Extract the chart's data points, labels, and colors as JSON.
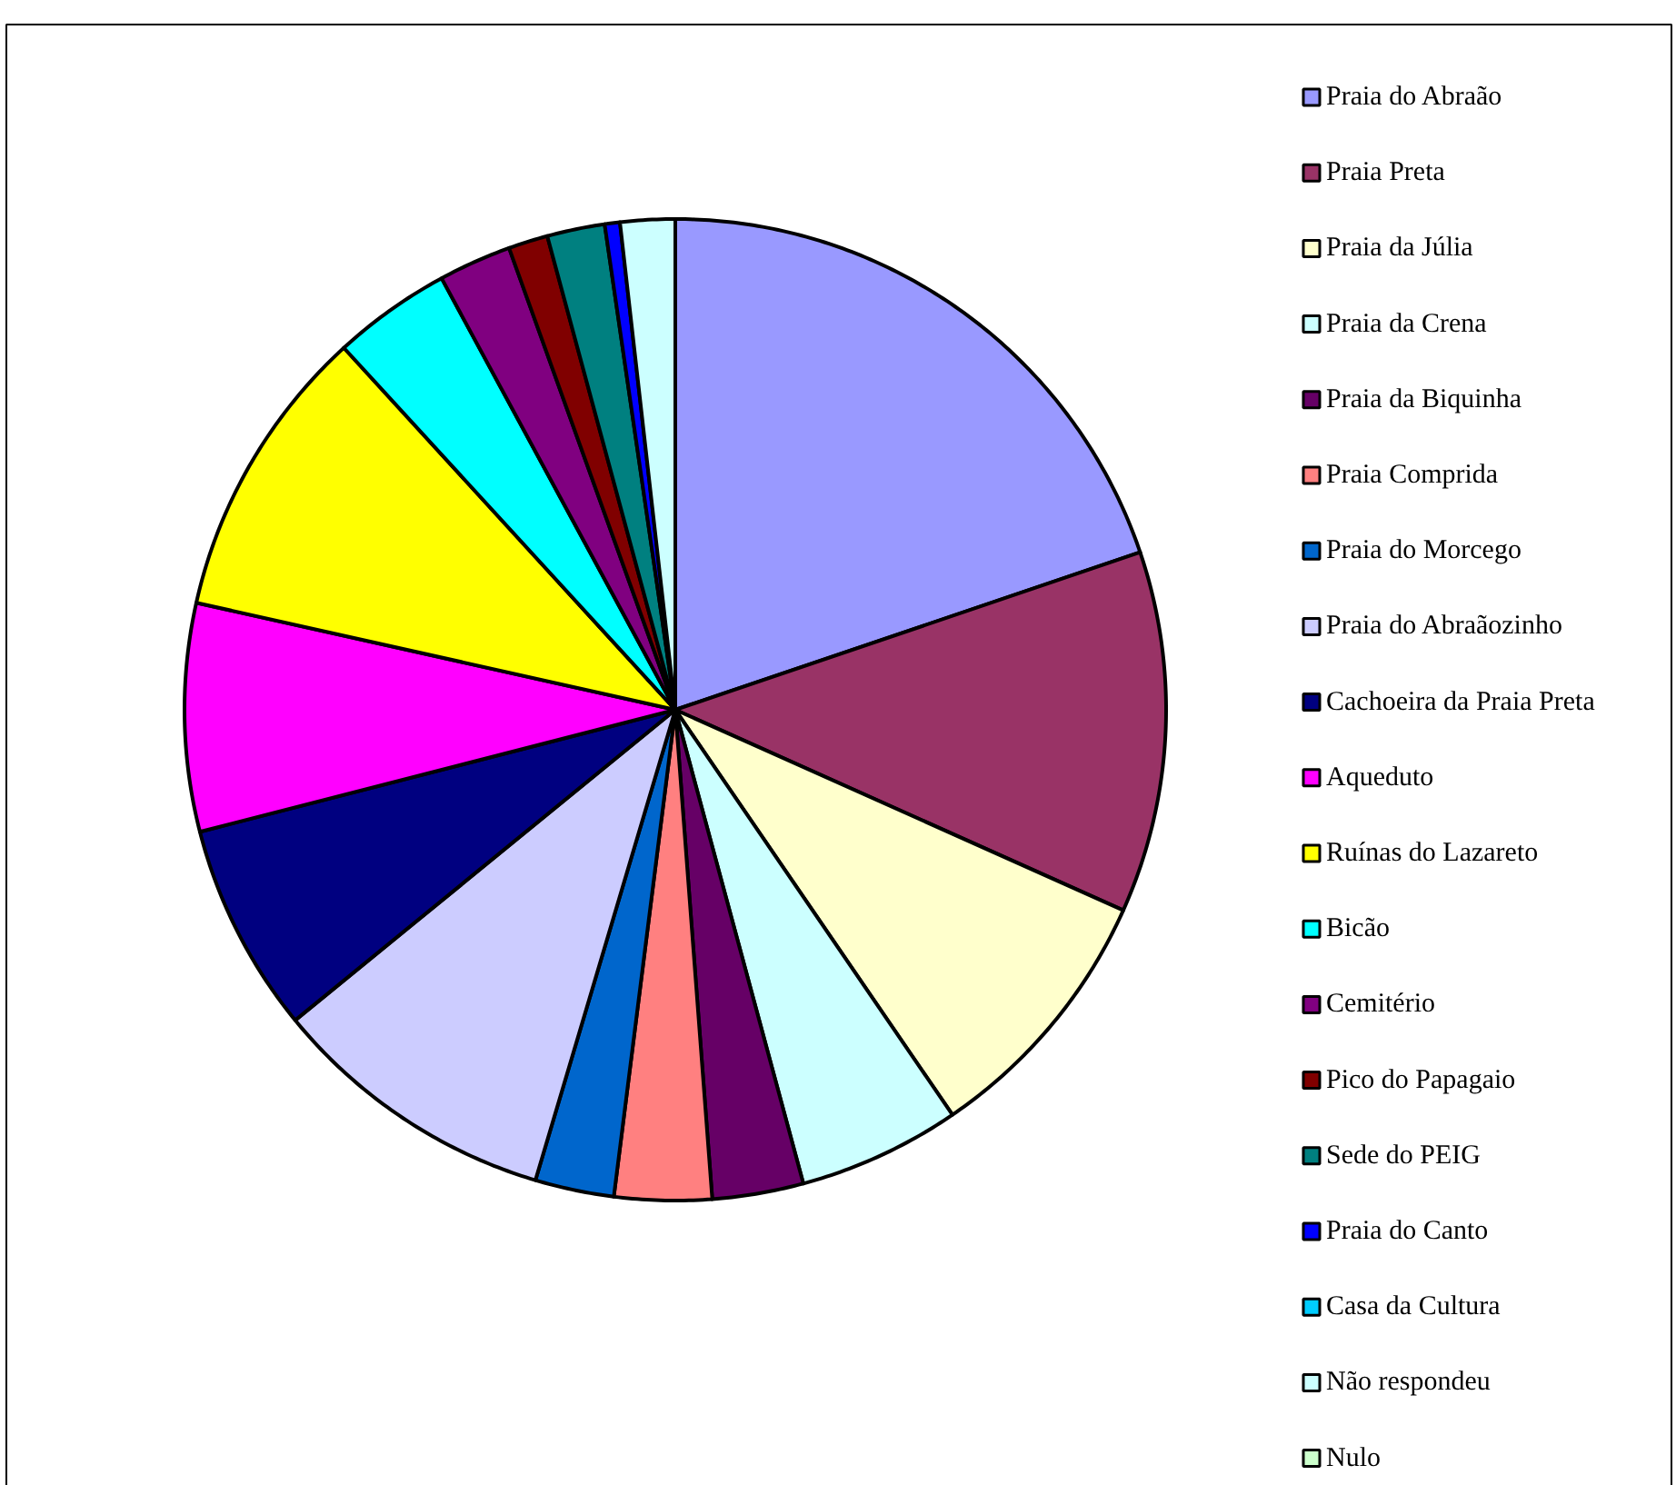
{
  "chart_data": {
    "type": "pie",
    "legend": "right",
    "categories": [
      "Praia do Abraão",
      "Praia Preta",
      "Praia da Júlia",
      "Praia da Crena",
      "Praia da Biquinha",
      "Praia Comprida",
      "Praia do Morcego",
      "Praia do Abraãozinho",
      "Cachoeira da Praia Preta",
      "Aqueduto",
      "Ruínas do Lazareto",
      "Bicão",
      "Cemitério",
      "Pico do Papagaio",
      "Sede do PEIG",
      "Praia do Canto",
      "Casa da Cultura",
      "Não respondeu",
      "Nulo"
    ],
    "values": [
      19.8,
      11.9,
      8.75,
      5.35,
      3.0,
      3.2,
      2.6,
      9.5,
      6.9,
      7.5,
      9.7,
      3.9,
      2.4,
      1.3,
      1.9,
      0.5,
      0,
      1.8,
      0
    ],
    "colors": [
      "#9999ff",
      "#993366",
      "#ffffcc",
      "#ccffff",
      "#660066",
      "#ff8080",
      "#0066cc",
      "#ccccff",
      "#000080",
      "#ff00ff",
      "#ffff00",
      "#00ffff",
      "#800080",
      "#800000",
      "#008080",
      "#0000ff",
      "#00ccff",
      "#ccffff",
      "#ccffcc"
    ]
  }
}
